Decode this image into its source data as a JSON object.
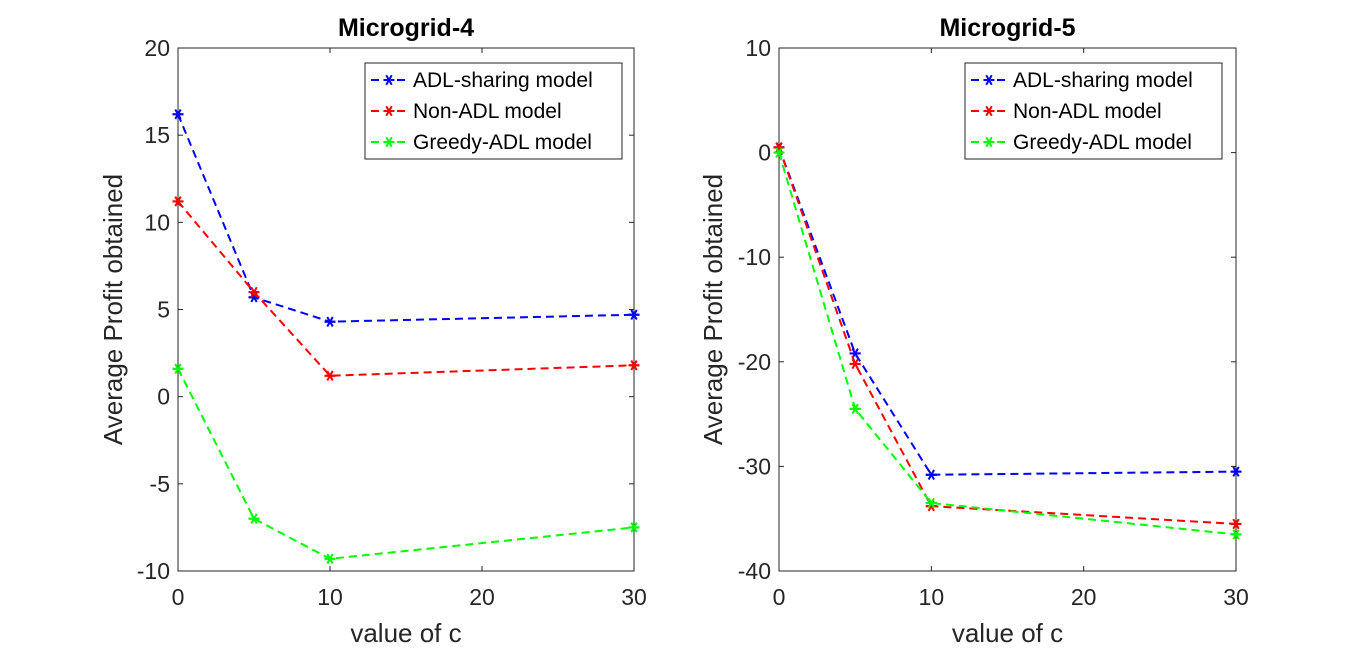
{
  "chart_data": [
    {
      "type": "line",
      "title": "Microgrid-4",
      "xlabel": "value of c",
      "ylabel": "Average Profit obtained",
      "xlim": [
        0,
        30
      ],
      "ylim": [
        -10,
        20
      ],
      "xticks": [
        0,
        10,
        20,
        30
      ],
      "xtick_labels": [
        "0",
        "10",
        "20",
        "30"
      ],
      "yticks": [
        -10,
        -5,
        0,
        5,
        10,
        15,
        20
      ],
      "ytick_labels": [
        "-10",
        "-5",
        "0",
        "5",
        "10",
        "15",
        "20"
      ],
      "grid": false,
      "legend_position": "top-right",
      "x": [
        0,
        5,
        10,
        30
      ],
      "series": [
        {
          "name": "ADL-sharing model",
          "color": "#0000ff",
          "values": [
            16.2,
            5.7,
            4.3,
            4.7
          ]
        },
        {
          "name": "Non-ADL model",
          "color": "#ff0000",
          "values": [
            11.2,
            6.0,
            1.2,
            1.8
          ]
        },
        {
          "name": "Greedy-ADL model",
          "color": "#00ff00",
          "values": [
            1.6,
            -7.0,
            -9.3,
            -7.5
          ]
        }
      ]
    },
    {
      "type": "line",
      "title": "Microgrid-5",
      "xlabel": "value of c",
      "ylabel": "Average Profit obtained",
      "xlim": [
        0,
        30
      ],
      "ylim": [
        -40,
        10
      ],
      "xticks": [
        0,
        10,
        20,
        30
      ],
      "xtick_labels": [
        "0",
        "10",
        "20",
        "30"
      ],
      "yticks": [
        -40,
        -30,
        -20,
        -10,
        0,
        10
      ],
      "ytick_labels": [
        "-40",
        "-30",
        "-20",
        "-10",
        "0",
        "10"
      ],
      "grid": false,
      "legend_position": "top-right",
      "x": [
        0,
        5,
        10,
        30
      ],
      "series": [
        {
          "name": "ADL-sharing model",
          "color": "#0000ff",
          "values": [
            0.5,
            -19.2,
            -30.8,
            -30.5
          ]
        },
        {
          "name": "Non-ADL model",
          "color": "#ff0000",
          "values": [
            0.5,
            -20.2,
            -33.8,
            -35.5
          ]
        },
        {
          "name": "Greedy-ADL model",
          "color": "#00ff00",
          "values": [
            0.0,
            -24.5,
            -33.5,
            -36.5
          ]
        }
      ]
    }
  ]
}
